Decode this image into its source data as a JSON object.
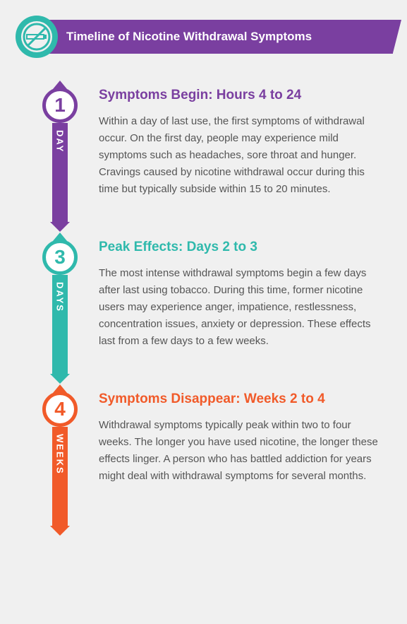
{
  "header": {
    "title": "Timeline of Nicotine Withdrawal Symptoms",
    "banner_color": "#7a3fa0",
    "icon_ring_color": "#2fb9ac",
    "icon_inner_color": "#ffffff"
  },
  "background_color": "#f0f0f0",
  "body_text_color": "#555555",
  "stages": [
    {
      "number": "1",
      "unit": "DAY",
      "color": "#7a3fa0",
      "title": "Symptoms Begin: Hours 4 to 24",
      "body": "Within a day of last use, the first symptoms of withdrawal occur. On the first day, people may experience mild symptoms such as headaches, sore throat and hunger. Cravings caused by nicotine withdrawal occur during this time but typically subside within 15 to 20 minutes."
    },
    {
      "number": "3",
      "unit": "DAYS",
      "color": "#2fb9ac",
      "title": "Peak Effects: Days 2 to 3",
      "body": "The most intense withdrawal symptoms begin a few days after last using tobacco. During this time, former nicotine users may experience anger, impatience, restlessness, concentration issues, anxiety or depression. These effects last from a few days to a few weeks."
    },
    {
      "number": "4",
      "unit": "WEEKS",
      "color": "#f15a29",
      "title": "Symptoms Disappear: Weeks 2 to 4",
      "body": "Withdrawal symptoms typically peak within two to four weeks. The longer you have used nicotine, the longer these effects linger. A person who has battled addiction for years might deal with withdrawal symptoms for several months."
    }
  ]
}
